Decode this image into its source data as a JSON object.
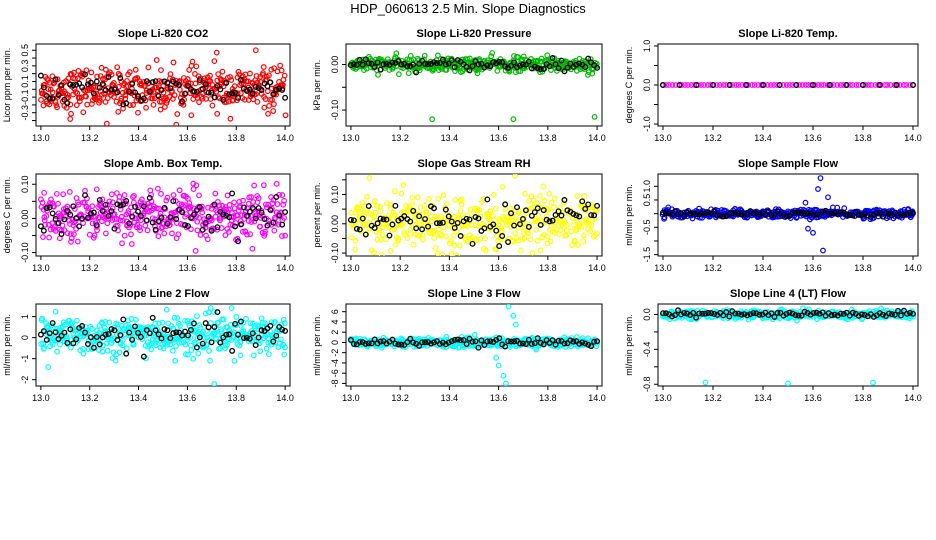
{
  "title": "HDP_060613  2.5 Min. Slope Diagnostics",
  "colors": {
    "black": "#000000"
  },
  "chart_data": [
    {
      "type": "scatter",
      "title": "Slope Li-820 CO2",
      "ylabel": "Licor ppm per min.",
      "color": "#ff0000",
      "xlim": [
        12.98,
        14.02
      ],
      "ylim": [
        -0.47,
        0.58
      ],
      "xticks": [
        "13.0",
        "13.2",
        "13.4",
        "13.6",
        "13.8",
        "14.0"
      ],
      "yticks": [
        -0.4,
        -0.3,
        -0.2,
        -0.1,
        0.0,
        0.1,
        0.2,
        0.3,
        0.4,
        0.5
      ],
      "ytick_labels": [
        "",
        "-0.3",
        "",
        "-0.1",
        "",
        "0.1",
        "",
        "0.3",
        "",
        "0.5"
      ],
      "n_points": 420,
      "spread": 0.13,
      "center": 0.0,
      "outliers": [
        [
          13.27,
          -0.44
        ],
        [
          13.12,
          -0.38
        ],
        [
          13.88,
          0.5
        ],
        [
          13.72,
          0.47
        ],
        [
          13.49,
          -0.26
        ]
      ]
    },
    {
      "type": "scatter",
      "title": "Slope Li-820 Pressure",
      "ylabel": "kPa per min.",
      "color": "#00bb00",
      "xlim": [
        12.98,
        14.02
      ],
      "ylim": [
        -0.135,
        0.045
      ],
      "xticks": [
        "13.0",
        "13.2",
        "13.4",
        "13.6",
        "13.8",
        "14.0"
      ],
      "yticks": [
        -0.1,
        -0.05,
        0.0
      ],
      "ytick_labels": [
        "-0.10",
        "",
        "0.00"
      ],
      "n_points": 420,
      "spread": 0.008,
      "center": 0.0,
      "outliers": [
        [
          13.33,
          -0.12
        ],
        [
          13.66,
          -0.12
        ],
        [
          13.99,
          -0.115
        ],
        [
          13.98,
          -0.02
        ]
      ]
    },
    {
      "type": "scatter",
      "title": "Slope Li-820 Temp.",
      "ylabel": "degrees C per min.",
      "color": "#ff00ff",
      "xlim": [
        12.98,
        14.02
      ],
      "ylim": [
        -1.05,
        1.05
      ],
      "xticks": [
        "13.0",
        "13.2",
        "13.4",
        "13.6",
        "13.8",
        "14.0"
      ],
      "yticks": [
        -1.0,
        -0.5,
        0.0,
        0.5,
        1.0
      ],
      "ytick_labels": [
        "-1.0",
        "",
        "0.0",
        "",
        "1.0"
      ],
      "n_points": 80,
      "spread": 0.0,
      "center": 0.0,
      "outliers": []
    },
    {
      "type": "scatter",
      "title": "Slope Amb. Box Temp.",
      "ylabel": "degrees C per min.",
      "color": "#ff00ff",
      "xlim": [
        12.98,
        14.02
      ],
      "ylim": [
        -0.11,
        0.13
      ],
      "xticks": [
        "13.0",
        "13.2",
        "13.4",
        "13.6",
        "13.8",
        "14.0"
      ],
      "yticks": [
        -0.1,
        -0.05,
        0.0,
        0.05,
        0.1
      ],
      "ytick_labels": [
        "-0.10",
        "",
        "0.00",
        "",
        "0.10"
      ],
      "n_points": 420,
      "spread": 0.035,
      "center": 0.01,
      "outliers": []
    },
    {
      "type": "scatter",
      "title": "Slope Gas Stream RH",
      "ylabel": "percent per min.",
      "color": "#ffff00",
      "xlim": [
        12.98,
        14.02
      ],
      "ylim": [
        -0.11,
        0.17
      ],
      "xticks": [
        "13.0",
        "13.2",
        "13.4",
        "13.6",
        "13.8",
        "14.0"
      ],
      "yticks": [
        -0.1,
        -0.05,
        0.0,
        0.05,
        0.1,
        0.15
      ],
      "ytick_labels": [
        "-0.10",
        "",
        "0.00",
        "",
        "0.10",
        ""
      ],
      "n_points": 420,
      "spread": 0.045,
      "center": 0.01,
      "outliers": []
    },
    {
      "type": "scatter",
      "title": "Slope Sample Flow",
      "ylabel": "ml/min per min.",
      "color": "#0000ff",
      "xlim": [
        12.98,
        14.02
      ],
      "ylim": [
        -1.55,
        1.45
      ],
      "xticks": [
        "13.0",
        "13.2",
        "13.4",
        "13.6",
        "13.8",
        "14.0"
      ],
      "yticks": [
        -1.5,
        -1.0,
        -0.5,
        0.0,
        0.5,
        1.0
      ],
      "ytick_labels": [
        "-1.5",
        "",
        "-0.5",
        "",
        "0.5",
        "1.0"
      ],
      "n_points": 420,
      "spread": 0.08,
      "center": 0.0,
      "outliers": [
        [
          13.63,
          1.3
        ],
        [
          13.62,
          0.9
        ],
        [
          13.6,
          -0.7
        ],
        [
          13.58,
          -0.55
        ],
        [
          13.64,
          -1.35
        ],
        [
          13.66,
          0.6
        ],
        [
          13.57,
          0.4
        ]
      ]
    },
    {
      "type": "scatter",
      "title": "Slope Line 2 Flow",
      "ylabel": "ml/min per min.",
      "color": "#00ffff",
      "xlim": [
        12.98,
        14.02
      ],
      "ylim": [
        -2.3,
        1.6
      ],
      "xticks": [
        "13.0",
        "13.2",
        "13.4",
        "13.6",
        "13.8",
        "14.0"
      ],
      "yticks": [
        -2,
        -1,
        0,
        1
      ],
      "ytick_labels": [
        "-2",
        "-1",
        "0",
        "1"
      ],
      "n_points": 420,
      "spread": 0.45,
      "center": 0.1,
      "outliers": [
        [
          13.71,
          -2.2
        ],
        [
          13.03,
          -1.4
        ],
        [
          13.55,
          -1.1
        ]
      ]
    },
    {
      "type": "scatter",
      "title": "Slope Line 3 Flow",
      "ylabel": "ml/min per min.",
      "color": "#00ffff",
      "xlim": [
        12.98,
        14.02
      ],
      "ylim": [
        -8.5,
        7.5
      ],
      "xticks": [
        "13.0",
        "13.2",
        "13.4",
        "13.6",
        "13.8",
        "14.0"
      ],
      "yticks": [
        -8,
        -6,
        -4,
        -2,
        0,
        2,
        4,
        6
      ],
      "ytick_labels": [
        "-8",
        "-6",
        "-4",
        "-2",
        "0",
        "2",
        "4",
        "6"
      ],
      "n_points": 420,
      "spread": 0.45,
      "center": 0.0,
      "outliers": [
        [
          13.64,
          7.0
        ],
        [
          13.63,
          -8.0
        ],
        [
          13.62,
          -6.5
        ],
        [
          13.6,
          -4.5
        ],
        [
          13.66,
          5.2
        ],
        [
          13.59,
          -3.0
        ],
        [
          13.67,
          3.5
        ]
      ]
    },
    {
      "type": "scatter",
      "title": "Slope Line 4 (LT) Flow",
      "ylabel": "ml/min per min.",
      "color": "#00ffff",
      "xlim": [
        12.98,
        14.02
      ],
      "ylim": [
        -0.82,
        0.12
      ],
      "xticks": [
        "13.0",
        "13.2",
        "13.4",
        "13.6",
        "13.8",
        "14.0"
      ],
      "yticks": [
        -0.8,
        -0.6,
        -0.4,
        -0.2,
        0.0
      ],
      "ytick_labels": [
        "-0.8",
        "",
        "-0.4",
        "",
        "0.0"
      ],
      "n_points": 420,
      "spread": 0.025,
      "center": 0.0,
      "outliers": [
        [
          13.17,
          -0.78
        ],
        [
          13.5,
          -0.79
        ],
        [
          13.84,
          -0.78
        ]
      ]
    }
  ]
}
